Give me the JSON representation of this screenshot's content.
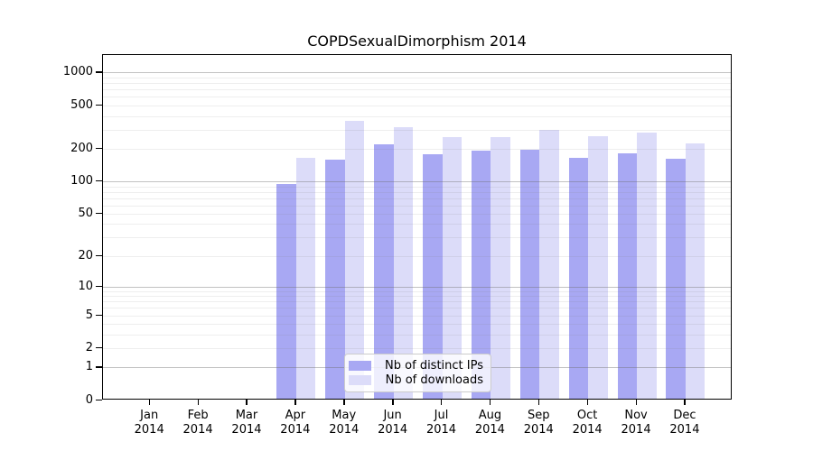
{
  "chart_data": {
    "type": "bar",
    "title": "COPDSexualDimorphism 2014",
    "categories": [
      "Jan",
      "Feb",
      "Mar",
      "Apr",
      "May",
      "Jun",
      "Jul",
      "Aug",
      "Sep",
      "Oct",
      "Nov",
      "Dec"
    ],
    "year": "2014",
    "series": [
      {
        "name": "Nb of distinct IPs",
        "color": "#a8a8f3",
        "values": [
          0,
          0,
          0,
          91,
          152,
          212,
          172,
          185,
          190,
          160,
          175,
          155
        ]
      },
      {
        "name": "Nb of downloads",
        "color": "#dcdcf9",
        "values": [
          0,
          0,
          0,
          160,
          350,
          303,
          247,
          248,
          287,
          250,
          272,
          215
        ]
      }
    ],
    "xlabel": "",
    "ylabel": "",
    "y_ticks": [
      0,
      1,
      2,
      5,
      10,
      20,
      50,
      100,
      200,
      500,
      1000
    ],
    "y_scale": "log10(1+x)",
    "ylim": [
      0,
      1460
    ],
    "grid": "horizontal; minor lines at 2-9 per decade, major lines at powers of 10",
    "legend_position": "lower center inside plot",
    "colors": {
      "background": "#ffffff",
      "axis": "#000000",
      "grid_major": "#c9c9c9",
      "grid_minor": "#ececec",
      "text": "#000000"
    }
  }
}
